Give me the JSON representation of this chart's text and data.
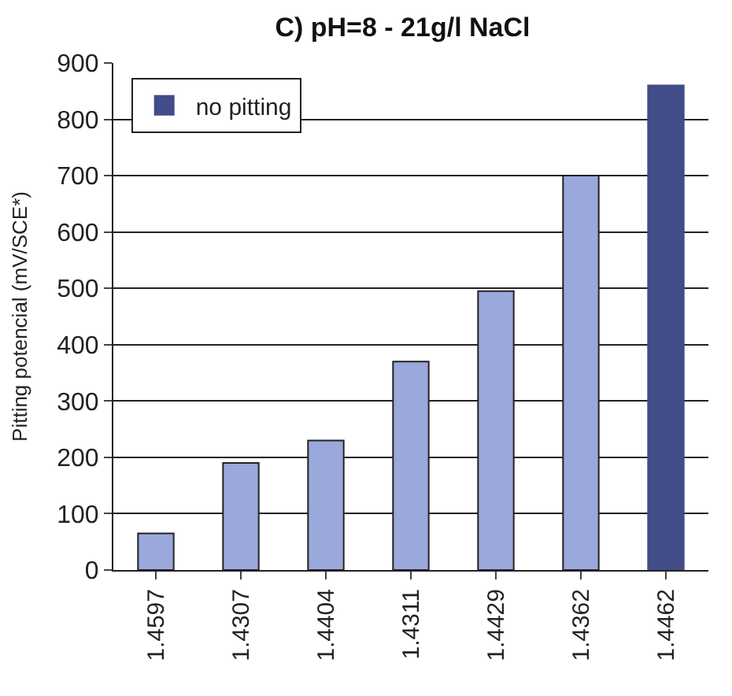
{
  "chart_data": {
    "type": "bar",
    "title": "C) pH=8 - 21g/l NaCl",
    "ylabel": "Pitting potencial (mV/SCE*)",
    "categories": [
      "1.4597",
      "1.4307",
      "1.4404",
      "1.4311",
      "1.4429",
      "1.4362",
      "1.4462"
    ],
    "series": [
      {
        "color": "#9aa8dc",
        "values": [
          65,
          190,
          230,
          370,
          495,
          700,
          null
        ]
      },
      {
        "name": "no pitting",
        "color": "#414c88",
        "values": [
          null,
          null,
          null,
          null,
          null,
          null,
          860
        ]
      }
    ],
    "ylim": [
      0,
      900
    ],
    "yticks": [
      0,
      100,
      200,
      300,
      400,
      500,
      600,
      700,
      800,
      900
    ],
    "grid": "y",
    "legend": "top left"
  }
}
